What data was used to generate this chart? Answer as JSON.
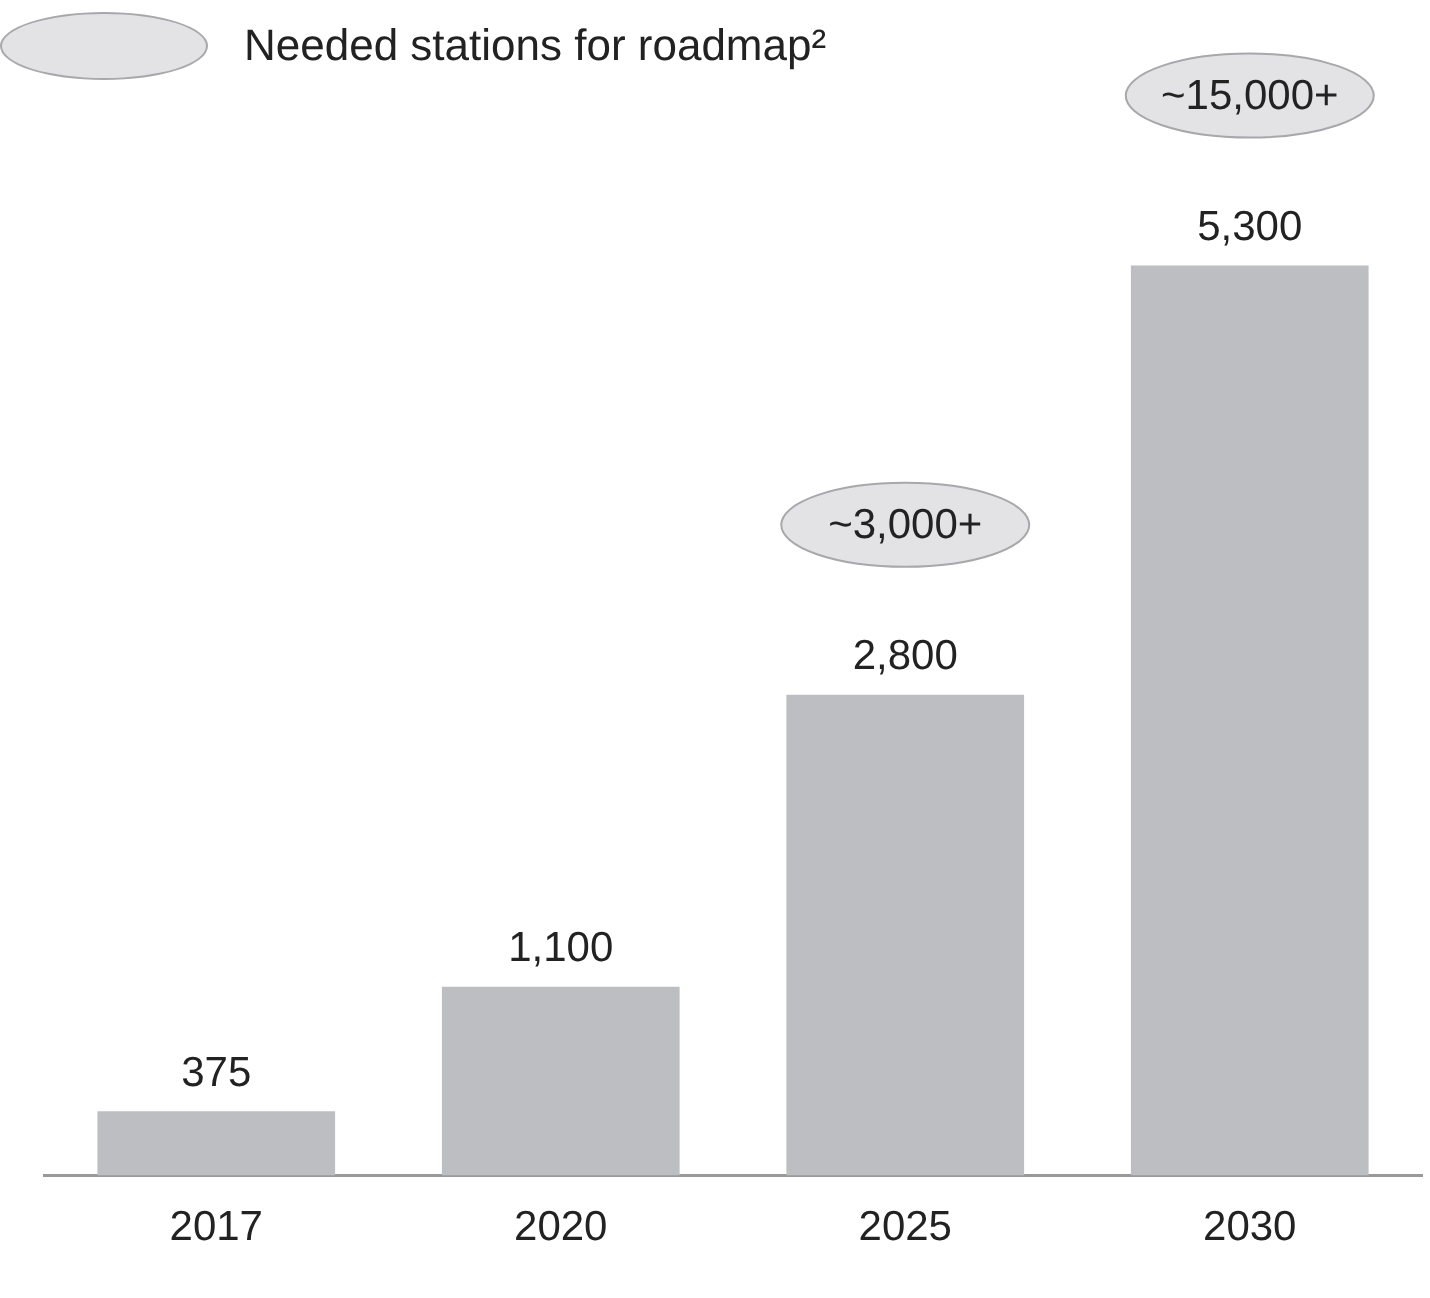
{
  "chart_data": {
    "type": "bar",
    "legend_title": "Needed stations for roadmap²",
    "categories": [
      "2017",
      "2020",
      "2025",
      "2030"
    ],
    "values": [
      375,
      1100,
      2800,
      5300
    ],
    "value_labels": [
      "375",
      "1,100",
      "2,800",
      "5,300"
    ],
    "color": "#bdbec2",
    "grid": false,
    "tick_labels": "x",
    "annotations": [
      "~3,000+",
      "~15,000+"
    ]
  }
}
